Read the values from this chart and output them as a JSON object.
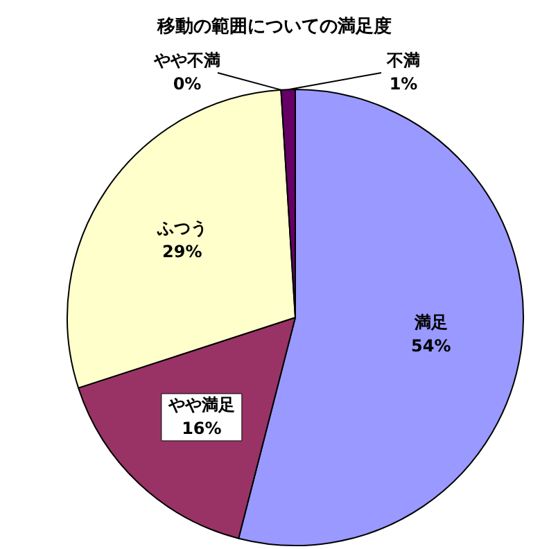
{
  "chart_data": {
    "type": "pie",
    "title": "移動の範囲についての満足度",
    "categories": [
      "満足",
      "やや満足",
      "ふつう",
      "やや不満",
      "不満"
    ],
    "values": [
      54,
      16,
      29,
      0,
      1
    ],
    "value_labels": [
      "54%",
      "16%",
      "29%",
      "0%",
      "1%"
    ],
    "colors": [
      "#9999ff",
      "#993366",
      "#ffffcc",
      "#ccffff",
      "#660066"
    ],
    "legend": false
  }
}
